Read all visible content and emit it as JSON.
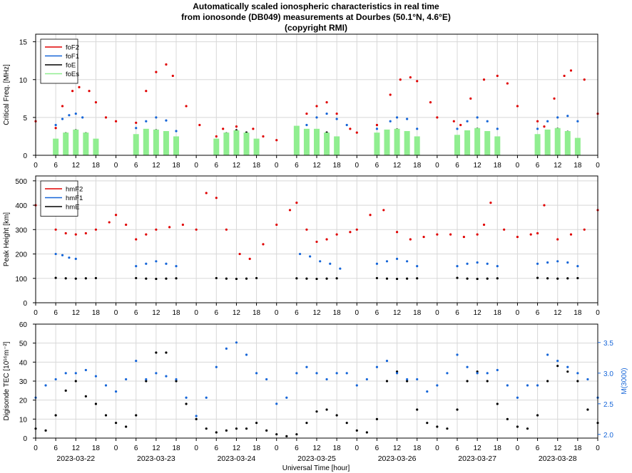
{
  "figure": {
    "title_lines": [
      "Automatically scaled ionospheric characteristics in real time",
      "from ionosonde (DB049) measurements at Dourbes (50.1°N, 4.6°E)",
      "(copyright RMI)"
    ],
    "xlabel": "Universal Time [hour]",
    "hour_ticks": [
      "0",
      "6",
      "12",
      "18"
    ],
    "final_tick": "0",
    "dates": [
      "2023-03-22",
      "2023-03-23",
      "2023-03-24",
      "2023-03-25",
      "2023-03-26",
      "2023-03-27",
      "2023-03-28"
    ]
  },
  "colors": {
    "red": "#e00000",
    "blue": "#1565d8",
    "black": "#000000",
    "green": "#90ee90",
    "grid": "#d8d8d8"
  },
  "chart_data": [
    {
      "type": "scatter",
      "id": "critical-frequency",
      "ylabel": "Critical Freq. [MHz]",
      "ylim": [
        0,
        16
      ],
      "yticks": [
        0,
        5,
        10,
        15
      ],
      "grid": true,
      "legend_position": "top-left",
      "series": [
        {
          "name": "foF2",
          "color": "#e00000",
          "x": [
            0,
            6,
            8,
            11,
            13,
            16,
            18,
            21,
            24,
            30,
            33,
            36,
            39,
            41,
            45,
            49,
            54,
            56,
            60,
            65,
            68,
            72,
            78,
            81,
            84,
            87,
            90,
            94,
            96,
            102,
            106,
            109,
            112,
            114,
            118,
            120,
            125,
            127,
            130,
            134,
            138,
            141,
            144,
            150,
            152,
            155,
            158,
            160,
            164,
            168
          ],
          "y": [
            4.5,
            3.6,
            6.5,
            8.5,
            9.0,
            8.5,
            7.0,
            5.0,
            4.5,
            4.3,
            8.5,
            11.0,
            12.0,
            10.5,
            6.5,
            4.0,
            2.5,
            3.5,
            3.8,
            3.5,
            2.5,
            2.0,
            1.8,
            5.5,
            6.5,
            7.0,
            5.5,
            3.5,
            3.0,
            4.0,
            8.0,
            10.0,
            10.3,
            9.8,
            7.0,
            5.0,
            4.5,
            4.0,
            7.5,
            10.0,
            10.5,
            9.5,
            6.5,
            4.5,
            3.8,
            7.5,
            10.5,
            11.2,
            10.0,
            5.5
          ]
        },
        {
          "name": "foF1",
          "color": "#1565d8",
          "x": [
            6,
            8,
            10,
            12,
            14,
            30,
            33,
            36,
            39,
            42,
            81,
            84,
            87,
            90,
            93,
            102,
            106,
            108,
            111,
            114,
            126,
            129,
            132,
            135,
            138,
            150,
            153,
            156,
            159,
            162
          ],
          "y": [
            4.0,
            4.8,
            5.3,
            5.5,
            5.0,
            3.6,
            4.5,
            5.0,
            4.6,
            3.2,
            4.0,
            5.0,
            5.5,
            4.8,
            4.0,
            3.5,
            4.5,
            5.0,
            4.8,
            3.5,
            3.5,
            4.5,
            5.0,
            4.5,
            3.5,
            3.5,
            4.5,
            5.0,
            5.2,
            4.5
          ]
        },
        {
          "name": "foE",
          "color": "#000000",
          "x": [
            6,
            9,
            12,
            15,
            18,
            30,
            33,
            36,
            39,
            42,
            54,
            57,
            60,
            63,
            66,
            78,
            81,
            84,
            87,
            90,
            102,
            105,
            108,
            111,
            114,
            126,
            129,
            132,
            135,
            138,
            150,
            153,
            156,
            159,
            162
          ],
          "y": [
            1.6,
            2.9,
            3.3,
            2.9,
            1.6,
            1.7,
            3.0,
            3.3,
            3.0,
            1.7,
            1.7,
            2.9,
            3.3,
            3.0,
            1.8,
            2.0,
            3.0,
            3.3,
            3.0,
            2.0,
            1.8,
            3.0,
            3.4,
            3.0,
            1.8,
            1.8,
            3.0,
            3.5,
            3.0,
            1.8,
            1.8,
            3.0,
            3.5,
            3.1,
            1.9
          ]
        },
        {
          "name": "foEs",
          "color": "#90ee90",
          "x": [
            6,
            9,
            12,
            15,
            18,
            30,
            33,
            36,
            39,
            42,
            54,
            57,
            60,
            63,
            66,
            78,
            81,
            84,
            87,
            90,
            102,
            105,
            108,
            111,
            114,
            126,
            129,
            132,
            135,
            138,
            150,
            153,
            156,
            159,
            162
          ],
          "y": [
            2.2,
            3.0,
            3.4,
            3.0,
            2.2,
            2.8,
            3.5,
            3.4,
            3.2,
            2.5,
            2.2,
            3.0,
            3.3,
            3.0,
            2.2,
            3.9,
            3.5,
            3.5,
            3.0,
            2.5,
            3.0,
            3.4,
            3.5,
            3.2,
            2.5,
            2.7,
            3.3,
            3.6,
            3.2,
            2.5,
            2.8,
            3.4,
            3.6,
            3.2,
            2.3
          ]
        }
      ]
    },
    {
      "type": "scatter",
      "id": "peak-height",
      "ylabel": "Peak Height [km]",
      "ylim": [
        0,
        520
      ],
      "yticks": [
        0,
        100,
        200,
        300,
        400,
        500
      ],
      "grid": true,
      "legend_position": "top-left",
      "series": [
        {
          "name": "hmF2",
          "color": "#e00000",
          "x": [
            0,
            3,
            6,
            9,
            12,
            15,
            18,
            22,
            24,
            27,
            30,
            33,
            36,
            40,
            44,
            48,
            51,
            54,
            57,
            61,
            64,
            68,
            72,
            76,
            78,
            81,
            84,
            87,
            90,
            94,
            96,
            100,
            104,
            108,
            112,
            116,
            120,
            124,
            128,
            132,
            134,
            136,
            140,
            144,
            148,
            150,
            152,
            156,
            160,
            164,
            168
          ],
          "y": [
            400,
            380,
            300,
            285,
            280,
            285,
            300,
            330,
            360,
            320,
            260,
            280,
            300,
            310,
            320,
            300,
            450,
            430,
            300,
            200,
            180,
            240,
            320,
            380,
            410,
            300,
            250,
            260,
            280,
            290,
            300,
            360,
            380,
            290,
            260,
            270,
            280,
            280,
            270,
            280,
            320,
            410,
            300,
            270,
            280,
            285,
            400,
            260,
            280,
            300,
            380
          ]
        },
        {
          "name": "hmF1",
          "color": "#1565d8",
          "x": [
            6,
            8,
            10,
            12,
            30,
            33,
            36,
            39,
            42,
            79,
            82,
            85,
            88,
            91,
            102,
            105,
            108,
            111,
            114,
            126,
            129,
            132,
            135,
            138,
            150,
            153,
            156,
            159,
            162
          ],
          "y": [
            200,
            195,
            185,
            180,
            150,
            160,
            170,
            160,
            150,
            200,
            190,
            170,
            160,
            140,
            160,
            170,
            180,
            170,
            150,
            150,
            160,
            165,
            160,
            150,
            160,
            165,
            170,
            165,
            150
          ]
        },
        {
          "name": "hmE",
          "color": "#000000",
          "x": [
            6,
            9,
            12,
            15,
            18,
            30,
            33,
            36,
            39,
            42,
            54,
            57,
            60,
            63,
            66,
            78,
            81,
            84,
            87,
            90,
            102,
            105,
            108,
            111,
            114,
            126,
            129,
            132,
            135,
            138,
            150,
            153,
            156,
            159,
            162
          ],
          "y": [
            102,
            100,
            99,
            100,
            101,
            101,
            99,
            98,
            99,
            100,
            101,
            99,
            98,
            99,
            101,
            100,
            99,
            98,
            99,
            100,
            101,
            99,
            98,
            99,
            100,
            102,
            99,
            98,
            99,
            100,
            102,
            100,
            99,
            100,
            101
          ]
        }
      ]
    },
    {
      "type": "scatter",
      "id": "tec-and-m3000",
      "ylabel": "Digisonde TEC [10¹⁶m⁻²]",
      "ylabel_right": "M(3000)",
      "ylim": [
        0,
        60
      ],
      "yticks": [
        0,
        10,
        20,
        30,
        40,
        50,
        60
      ],
      "ylim_right": [
        1.94,
        3.8
      ],
      "yticks_right": [
        2.0,
        2.5,
        3.0,
        3.5
      ],
      "grid": true,
      "series": [
        {
          "name": "TEC",
          "color": "#000000",
          "x": [
            0,
            3,
            6,
            9,
            12,
            15,
            18,
            21,
            24,
            27,
            30,
            33,
            36,
            39,
            42,
            45,
            48,
            51,
            54,
            57,
            60,
            63,
            66,
            69,
            72,
            75,
            78,
            81,
            84,
            87,
            90,
            93,
            96,
            99,
            102,
            105,
            108,
            111,
            114,
            117,
            120,
            123,
            126,
            129,
            132,
            135,
            138,
            141,
            144,
            147,
            150,
            153,
            156,
            159,
            162,
            165,
            168
          ],
          "y": [
            5,
            4,
            12,
            25,
            30,
            22,
            18,
            12,
            8,
            6,
            12,
            30,
            45,
            45,
            30,
            18,
            10,
            5,
            3,
            4,
            5,
            5,
            8,
            4,
            2,
            1,
            2,
            8,
            14,
            15,
            12,
            8,
            4,
            3,
            10,
            30,
            35,
            30,
            15,
            8,
            6,
            5,
            15,
            30,
            35,
            30,
            18,
            10,
            6,
            5,
            12,
            30,
            38,
            35,
            30,
            15,
            8
          ]
        },
        {
          "name": "M(3000)",
          "color": "#1565d8",
          "axis": "right",
          "x": [
            0,
            3,
            6,
            9,
            12,
            15,
            18,
            21,
            24,
            27,
            30,
            33,
            36,
            39,
            42,
            45,
            48,
            51,
            54,
            57,
            60,
            63,
            66,
            69,
            72,
            75,
            78,
            81,
            84,
            87,
            90,
            93,
            96,
            99,
            102,
            105,
            108,
            111,
            114,
            117,
            120,
            123,
            126,
            129,
            132,
            135,
            138,
            141,
            144,
            147,
            150,
            153,
            156,
            159,
            162,
            165,
            168
          ],
          "y": [
            2.6,
            2.8,
            2.9,
            3.0,
            3.0,
            3.05,
            2.95,
            2.8,
            2.7,
            2.9,
            3.2,
            2.9,
            3.0,
            2.95,
            2.9,
            2.6,
            2.3,
            2.6,
            3.1,
            3.4,
            3.5,
            3.3,
            3.0,
            2.9,
            2.5,
            2.6,
            3.0,
            3.1,
            3.0,
            2.9,
            3.0,
            3.0,
            2.8,
            2.9,
            3.1,
            3.2,
            3.0,
            2.9,
            2.9,
            2.7,
            2.8,
            3.0,
            3.3,
            3.1,
            3.0,
            3.0,
            3.05,
            2.8,
            2.6,
            2.8,
            2.8,
            3.3,
            3.2,
            3.1,
            3.0,
            2.9,
            2.6
          ]
        }
      ]
    }
  ]
}
